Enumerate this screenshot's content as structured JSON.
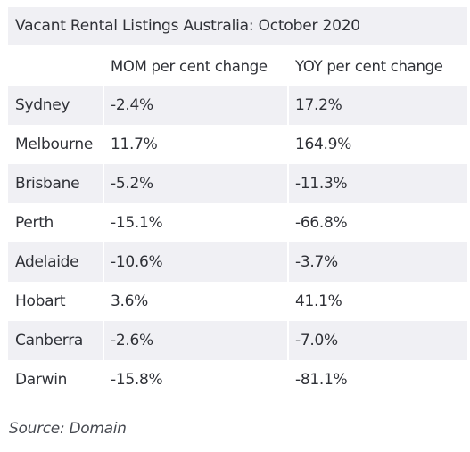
{
  "chart_data": {
    "type": "table",
    "title": "Vacant Rental Listings Australia: October 2020",
    "columns": [
      "",
      "MOM per cent change",
      "YOY per cent change"
    ],
    "rows": [
      {
        "city": "Sydney",
        "mom": "-2.4%",
        "yoy": "17.2%"
      },
      {
        "city": "Melbourne",
        "mom": "11.7%",
        "yoy": "164.9%"
      },
      {
        "city": "Brisbane",
        "mom": "-5.2%",
        "yoy": "-11.3%"
      },
      {
        "city": "Perth",
        "mom": "-15.1%",
        "yoy": "-66.8%"
      },
      {
        "city": "Adelaide",
        "mom": "-10.6%",
        "yoy": "-3.7%"
      },
      {
        "city": "Hobart",
        "mom": "3.6%",
        "yoy": "41.1%"
      },
      {
        "city": "Canberra",
        "mom": "-2.6%",
        "yoy": "-7.0%"
      },
      {
        "city": "Darwin",
        "mom": "-15.8%",
        "yoy": "-81.1%"
      }
    ],
    "source": "Source: Domain"
  },
  "colors": {
    "shaded_row": "#f0f0f4",
    "text": "#2f3137"
  }
}
